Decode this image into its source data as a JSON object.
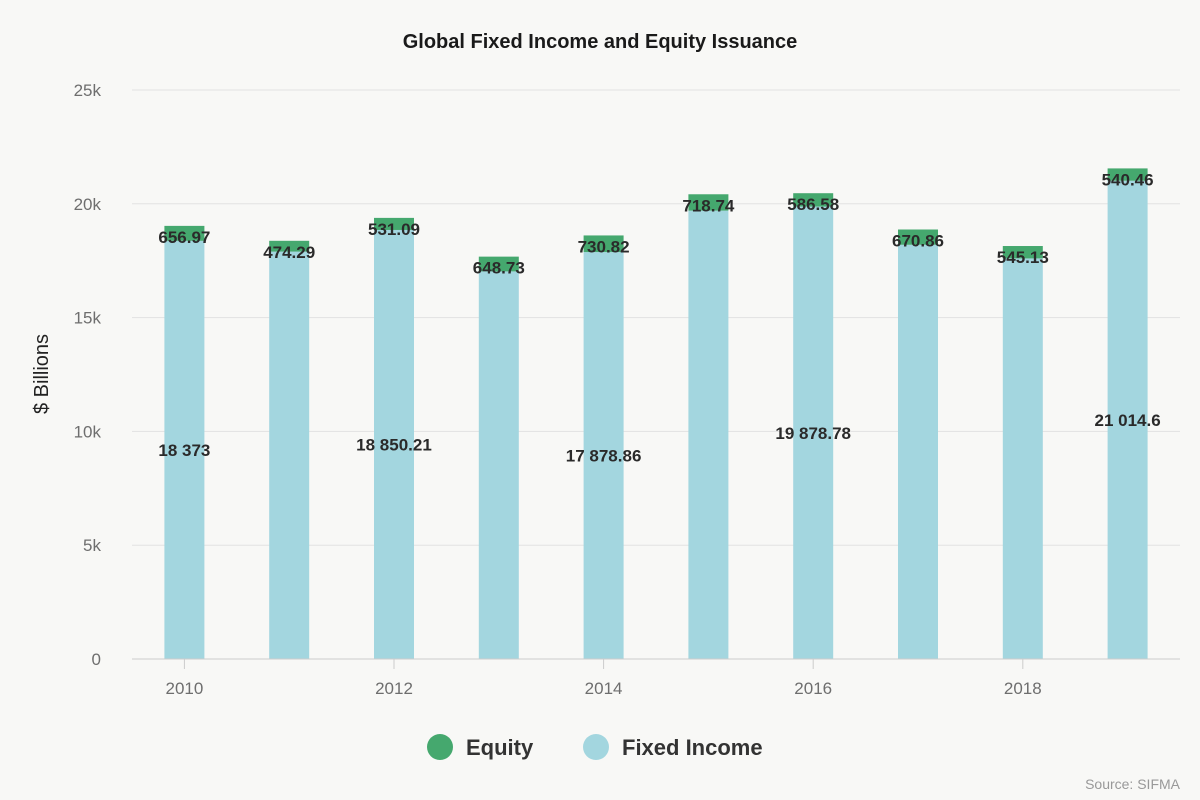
{
  "chart_data": {
    "type": "bar",
    "stacked": true,
    "title": "Global Fixed Income and Equity Issuance",
    "ylabel": "$ Billions",
    "xlabel": "",
    "ylim": [
      0,
      25000
    ],
    "yticks": [
      0,
      5000,
      10000,
      15000,
      20000,
      25000
    ],
    "ytick_labels": [
      "0",
      "5k",
      "10k",
      "15k",
      "20k",
      "25k"
    ],
    "categories": [
      2010,
      2011,
      2012,
      2013,
      2014,
      2015,
      2016,
      2017,
      2018,
      2019
    ],
    "xtick_labels": [
      "2010",
      "2012",
      "2014",
      "2016",
      "2018"
    ],
    "grid": true,
    "legend_position": "bottom-center",
    "series": [
      {
        "name": "Fixed Income",
        "color": "#a3d6df",
        "values": [
          18373,
          17900,
          18850.21,
          17030,
          17878.86,
          19700,
          19878.78,
          18200,
          17600,
          21014.6
        ],
        "shown_labels": [
          "18 373",
          null,
          "18 850.21",
          null,
          "17 878.86",
          null,
          "19 878.78",
          null,
          null,
          "21 014.6"
        ]
      },
      {
        "name": "Equity",
        "color": "#45a86e",
        "values": [
          656.97,
          474.29,
          531.09,
          648.73,
          730.82,
          718.74,
          586.58,
          670.86,
          545.13,
          540.46
        ],
        "shown_labels": [
          "656.97",
          "474.29",
          "531.09",
          "648.73",
          "730.82",
          "718.74",
          "586.58",
          "670.86",
          "545.13",
          "540.46"
        ]
      }
    ]
  },
  "credit": "Source: SIFMA"
}
